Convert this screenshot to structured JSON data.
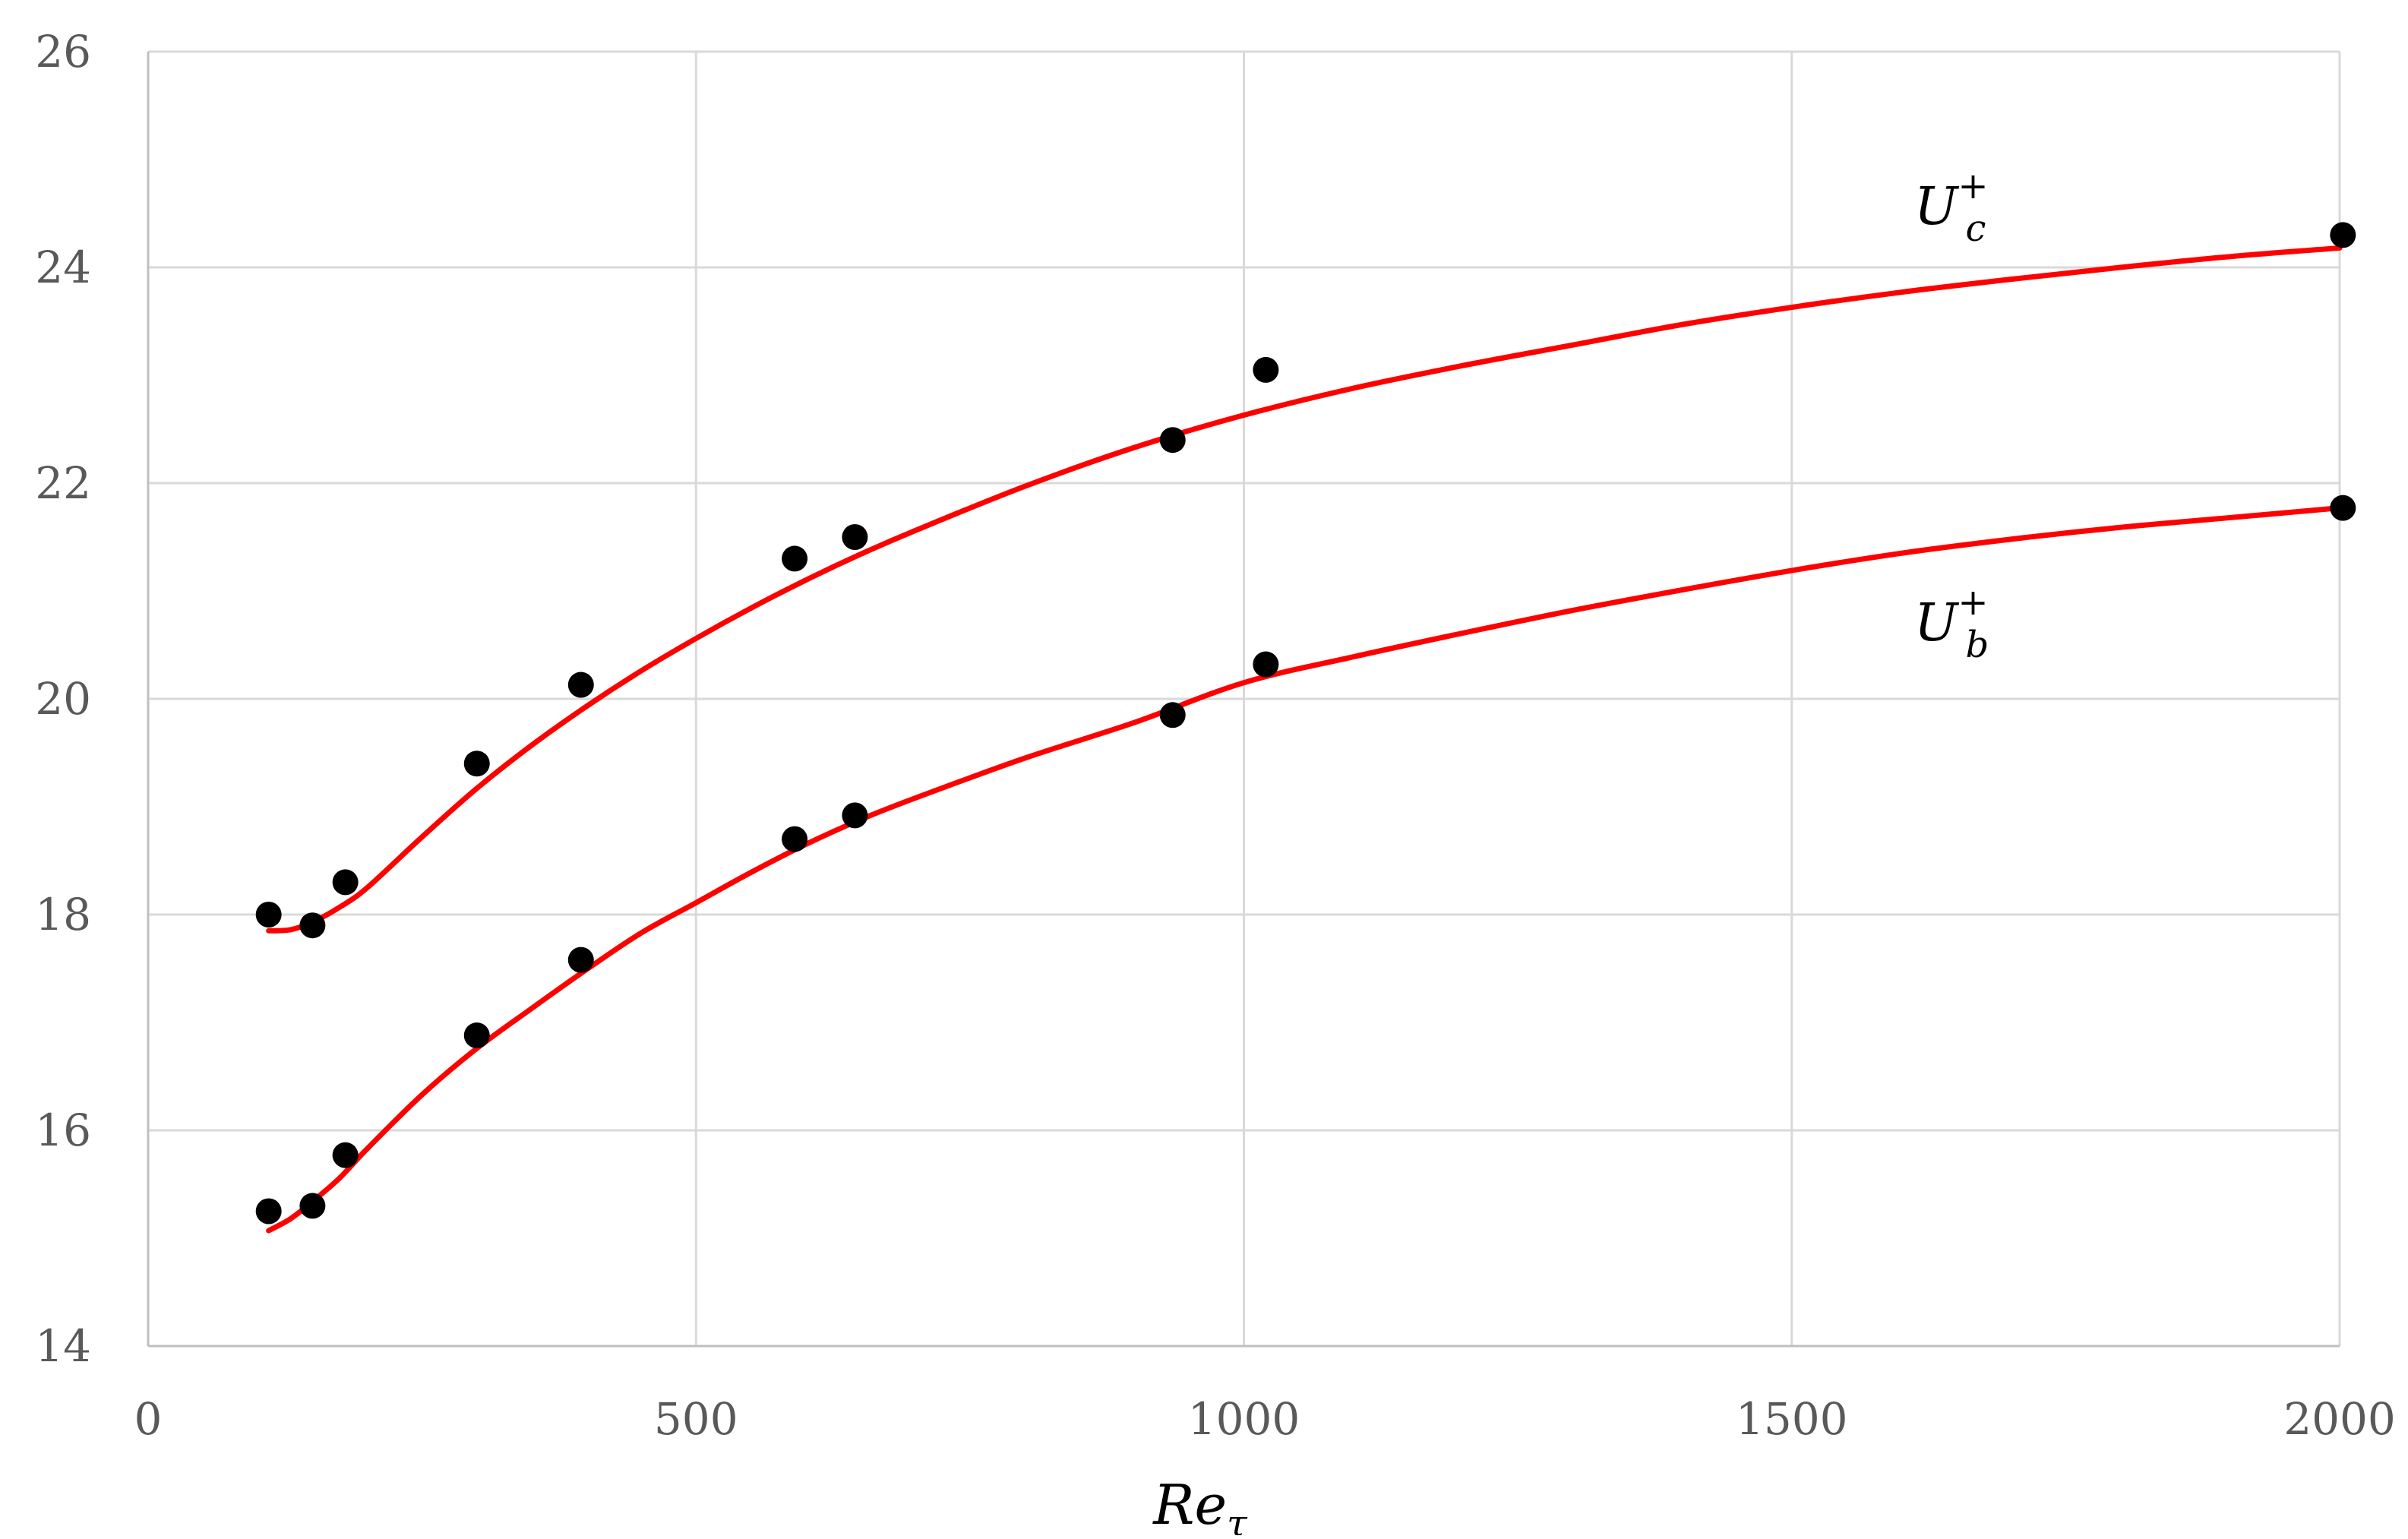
{
  "chart_data": {
    "type": "scatter",
    "title": "",
    "xlabel": "Re",
    "xlabel_sub": "τ",
    "ylabel": "",
    "xlim": [
      0,
      2000
    ],
    "ylim": [
      14,
      26
    ],
    "x_ticks": [
      0,
      500,
      1000,
      1500,
      2000
    ],
    "y_ticks": [
      14,
      16,
      18,
      20,
      22,
      24,
      26
    ],
    "grid": true,
    "legend": "none",
    "colors": {
      "points": "#000000",
      "fit_line": "#ff0000",
      "grid": "#d9d9d9",
      "tick_text": "#595959"
    },
    "series": [
      {
        "name": "U",
        "name_sub": "c",
        "name_sup": "+",
        "points": [
          [
            110,
            18.0
          ],
          [
            150,
            17.9
          ],
          [
            180,
            18.3
          ],
          [
            300,
            19.4
          ],
          [
            395,
            20.13
          ],
          [
            590,
            21.3
          ],
          [
            645,
            21.5
          ],
          [
            935,
            22.4
          ],
          [
            1020,
            23.05
          ],
          [
            2003,
            24.3
          ]
        ],
        "fit": [
          [
            110,
            17.85
          ],
          [
            130,
            17.86
          ],
          [
            150,
            17.93
          ],
          [
            175,
            18.07
          ],
          [
            200,
            18.25
          ],
          [
            250,
            18.72
          ],
          [
            300,
            19.17
          ],
          [
            350,
            19.57
          ],
          [
            400,
            19.93
          ],
          [
            450,
            20.26
          ],
          [
            500,
            20.56
          ],
          [
            550,
            20.84
          ],
          [
            600,
            21.1
          ],
          [
            650,
            21.34
          ],
          [
            700,
            21.56
          ],
          [
            800,
            21.97
          ],
          [
            900,
            22.33
          ],
          [
            1000,
            22.63
          ],
          [
            1100,
            22.88
          ],
          [
            1200,
            23.09
          ],
          [
            1300,
            23.28
          ],
          [
            1400,
            23.47
          ],
          [
            1500,
            23.63
          ],
          [
            1600,
            23.77
          ],
          [
            1700,
            23.89
          ],
          [
            1800,
            24.0
          ],
          [
            1900,
            24.1
          ],
          [
            2000,
            24.18
          ]
        ]
      },
      {
        "name": "U",
        "name_sub": "b",
        "name_sup": "+",
        "points": [
          [
            110,
            15.25
          ],
          [
            150,
            15.3
          ],
          [
            180,
            15.77
          ],
          [
            300,
            16.88
          ],
          [
            395,
            17.58
          ],
          [
            590,
            18.7
          ],
          [
            645,
            18.92
          ],
          [
            935,
            19.85
          ],
          [
            1020,
            20.32
          ],
          [
            2003,
            21.77
          ]
        ],
        "fit": [
          [
            110,
            15.07
          ],
          [
            130,
            15.18
          ],
          [
            150,
            15.34
          ],
          [
            175,
            15.56
          ],
          [
            200,
            15.83
          ],
          [
            250,
            16.33
          ],
          [
            300,
            16.76
          ],
          [
            350,
            17.13
          ],
          [
            400,
            17.49
          ],
          [
            450,
            17.83
          ],
          [
            500,
            18.11
          ],
          [
            550,
            18.39
          ],
          [
            600,
            18.65
          ],
          [
            650,
            18.88
          ],
          [
            700,
            19.08
          ],
          [
            800,
            19.45
          ],
          [
            900,
            19.78
          ],
          [
            1000,
            20.15
          ],
          [
            1100,
            20.39
          ],
          [
            1200,
            20.61
          ],
          [
            1300,
            20.82
          ],
          [
            1400,
            21.01
          ],
          [
            1500,
            21.19
          ],
          [
            1600,
            21.35
          ],
          [
            1700,
            21.48
          ],
          [
            1800,
            21.59
          ],
          [
            1900,
            21.68
          ],
          [
            2000,
            21.77
          ]
        ]
      }
    ]
  }
}
